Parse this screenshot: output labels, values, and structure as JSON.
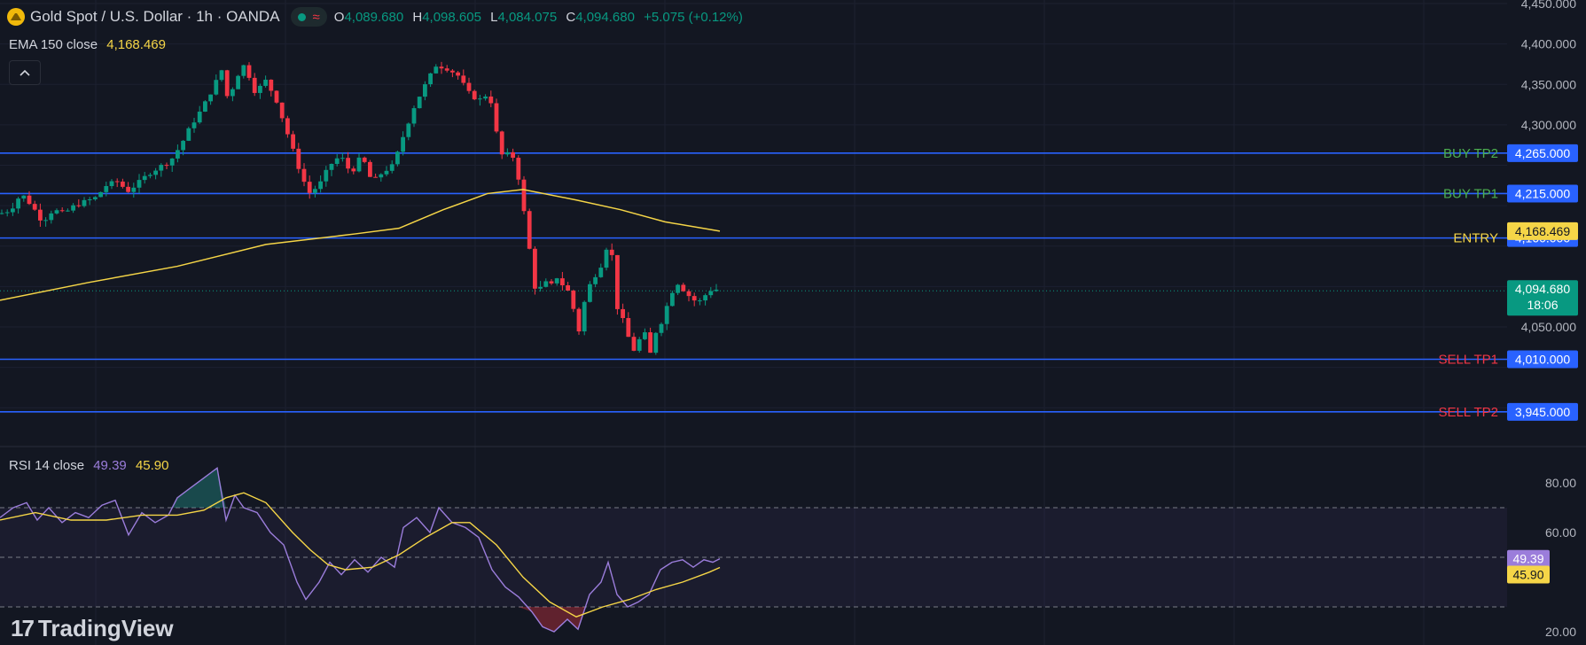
{
  "header": {
    "symbol": "Gold Spot / U.S. Dollar · 1h · OANDA",
    "open_label": "O",
    "open": "4,089.680",
    "high_label": "H",
    "high": "4,098.605",
    "low_label": "L",
    "low": "4,084.075",
    "close_label": "C",
    "close": "4,094.680",
    "change": "+5.075 (+0.12%)",
    "wave_glyph": "≈"
  },
  "ema": {
    "name": "EMA 150 close",
    "value": "4,168.469",
    "color": "#f5d547"
  },
  "rsi_legend": {
    "name": "RSI 14 close",
    "rsi": "49.39",
    "ma": "45.90",
    "rsi_color": "#9b7ddb",
    "ma_color": "#f5d547"
  },
  "branding": {
    "mark": "17",
    "name": "TradingView"
  },
  "colors": {
    "up": "#089981",
    "down": "#f23645",
    "level_line": "#2962ff",
    "label_bg": "#2962ff",
    "ema": "#f5d547",
    "rsi": "#9b7ddb",
    "buy_tp": "#4caf50",
    "sell_tp": "#f23645",
    "entry": "#f5d547",
    "price_bg": "#089981"
  },
  "chart_data": [
    {
      "type": "candlestick",
      "title": "Gold Spot / U.S. Dollar · 1h · OANDA",
      "ylim": [
        3930,
        4455
      ],
      "y_ticks": [
        4450,
        4400,
        4350,
        4300,
        4250,
        4200,
        4150,
        4100,
        4050,
        4000,
        3950
      ],
      "y_tick_labels": [
        "4,450.000",
        "4,400.000",
        "4,350.000",
        "4,300.000",
        "",
        "",
        "",
        "",
        "4,050.000",
        "",
        ""
      ],
      "levels": [
        {
          "name": "BUY TP2",
          "value": 4265,
          "label": "4,265.000",
          "color": "#4caf50"
        },
        {
          "name": "BUY TP1",
          "value": 4215,
          "label": "4,215.000",
          "color": "#4caf50"
        },
        {
          "name": "ENTRY",
          "value": 4160,
          "label": "4,160.000",
          "color": "#f5d547"
        },
        {
          "name": "SELL TP1",
          "value": 4010,
          "label": "4,010.000",
          "color": "#f23645"
        },
        {
          "name": "SELL TP2",
          "value": 3945,
          "label": "3,945.000",
          "color": "#f23645"
        }
      ],
      "ema_label": "4,168.469",
      "last_price": {
        "value": 4094.68,
        "label": "4,094.680",
        "countdown": "18:06"
      },
      "close_path": [
        [
          0,
          4190
        ],
        [
          12,
          4195
        ],
        [
          24,
          4215
        ],
        [
          36,
          4200
        ],
        [
          48,
          4180
        ],
        [
          60,
          4195
        ],
        [
          72,
          4190
        ],
        [
          84,
          4200
        ],
        [
          96,
          4205
        ],
        [
          108,
          4210
        ],
        [
          120,
          4225
        ],
        [
          132,
          4230
        ],
        [
          144,
          4218
        ],
        [
          156,
          4228
        ],
        [
          168,
          4240
        ],
        [
          180,
          4248
        ],
        [
          192,
          4255
        ],
        [
          204,
          4275
        ],
        [
          216,
          4300
        ],
        [
          228,
          4320
        ],
        [
          240,
          4345
        ],
        [
          252,
          4372
        ],
        [
          258,
          4320
        ],
        [
          264,
          4355
        ],
        [
          276,
          4375
        ],
        [
          288,
          4340
        ],
        [
          300,
          4355
        ],
        [
          312,
          4330
        ],
        [
          324,
          4290
        ],
        [
          336,
          4250
        ],
        [
          348,
          4215
        ],
        [
          360,
          4225
        ],
        [
          372,
          4250
        ],
        [
          384,
          4262
        ],
        [
          396,
          4240
        ],
        [
          408,
          4262
        ],
        [
          420,
          4228
        ],
        [
          432,
          4242
        ],
        [
          444,
          4250
        ],
        [
          456,
          4290
        ],
        [
          468,
          4325
        ],
        [
          480,
          4350
        ],
        [
          492,
          4374
        ],
        [
          504,
          4370
        ],
        [
          516,
          4362
        ],
        [
          528,
          4340
        ],
        [
          540,
          4330
        ],
        [
          552,
          4340
        ],
        [
          560,
          4290
        ],
        [
          568,
          4255
        ],
        [
          576,
          4270
        ],
        [
          584,
          4240
        ],
        [
          592,
          4185
        ],
        [
          600,
          4125
        ],
        [
          606,
          4080
        ],
        [
          612,
          4110
        ],
        [
          620,
          4098
        ],
        [
          628,
          4112
        ],
        [
          636,
          4100
        ],
        [
          644,
          4090
        ],
        [
          652,
          4040
        ],
        [
          660,
          4085
        ],
        [
          668,
          4110
        ],
        [
          676,
          4120
        ],
        [
          684,
          4148
        ],
        [
          690,
          4140
        ],
        [
          696,
          4075
        ],
        [
          702,
          4060
        ],
        [
          708,
          4040
        ],
        [
          714,
          4020
        ],
        [
          720,
          4030
        ],
        [
          726,
          4050
        ],
        [
          732,
          4010
        ],
        [
          740,
          4045
        ],
        [
          748,
          4060
        ],
        [
          756,
          4090
        ],
        [
          764,
          4105
        ],
        [
          772,
          4095
        ],
        [
          780,
          4085
        ],
        [
          788,
          4080
        ],
        [
          796,
          4090
        ],
        [
          804,
          4098
        ],
        [
          812,
          4094.7
        ]
      ],
      "ema150": [
        [
          0,
          4083
        ],
        [
          100,
          4105
        ],
        [
          200,
          4125
        ],
        [
          300,
          4152
        ],
        [
          400,
          4165
        ],
        [
          450,
          4172
        ],
        [
          500,
          4195
        ],
        [
          550,
          4215
        ],
        [
          590,
          4220
        ],
        [
          650,
          4207
        ],
        [
          700,
          4195
        ],
        [
          750,
          4180
        ],
        [
          812,
          4168.5
        ]
      ]
    },
    {
      "type": "line",
      "title": "RSI 14 close",
      "ylim": [
        18,
        92
      ],
      "y_ticks": [
        80,
        60,
        40,
        20
      ],
      "y_tick_labels": [
        "80.00",
        "60.00",
        "",
        "20.00"
      ],
      "guide_lines": [
        70,
        50,
        30
      ],
      "series": [
        {
          "name": "RSI 14",
          "color": "#9b7ddb",
          "points": [
            [
              0,
              66
            ],
            [
              15,
              70
            ],
            [
              30,
              72
            ],
            [
              42,
              65
            ],
            [
              55,
              70
            ],
            [
              70,
              64
            ],
            [
              85,
              68
            ],
            [
              100,
              66
            ],
            [
              115,
              71
            ],
            [
              130,
              73
            ],
            [
              145,
              59
            ],
            [
              160,
              68
            ],
            [
              175,
              64
            ],
            [
              190,
              67
            ],
            [
              200,
              74
            ],
            [
              215,
              78
            ],
            [
              230,
              82
            ],
            [
              245,
              86
            ],
            [
              255,
              65
            ],
            [
              265,
              75
            ],
            [
              275,
              70
            ],
            [
              290,
              68
            ],
            [
              305,
              60
            ],
            [
              320,
              55
            ],
            [
              335,
              40
            ],
            [
              345,
              33
            ],
            [
              360,
              40
            ],
            [
              372,
              48
            ],
            [
              385,
              43
            ],
            [
              400,
              49
            ],
            [
              415,
              44
            ],
            [
              430,
              50
            ],
            [
              445,
              46
            ],
            [
              455,
              62
            ],
            [
              470,
              66
            ],
            [
              485,
              60
            ],
            [
              495,
              70
            ],
            [
              510,
              64
            ],
            [
              525,
              62
            ],
            [
              540,
              58
            ],
            [
              555,
              45
            ],
            [
              570,
              38
            ],
            [
              585,
              34
            ],
            [
              600,
              28
            ],
            [
              612,
              22
            ],
            [
              625,
              20
            ],
            [
              640,
              25
            ],
            [
              652,
              21
            ],
            [
              665,
              35
            ],
            [
              678,
              40
            ],
            [
              686,
              48
            ],
            [
              696,
              35
            ],
            [
              708,
              30
            ],
            [
              720,
              32
            ],
            [
              732,
              35
            ],
            [
              745,
              45
            ],
            [
              758,
              48
            ],
            [
              770,
              49
            ],
            [
              782,
              46
            ],
            [
              794,
              49
            ],
            [
              804,
              48
            ],
            [
              812,
              49.4
            ]
          ]
        },
        {
          "name": "RSI MA",
          "color": "#f5d547",
          "points": [
            [
              0,
              65
            ],
            [
              40,
              68
            ],
            [
              80,
              65
            ],
            [
              120,
              65
            ],
            [
              160,
              67
            ],
            [
              200,
              67
            ],
            [
              230,
              69
            ],
            [
              255,
              74
            ],
            [
              275,
              76
            ],
            [
              300,
              72
            ],
            [
              330,
              60
            ],
            [
              350,
              53
            ],
            [
              370,
              47
            ],
            [
              390,
              45
            ],
            [
              420,
              46
            ],
            [
              450,
              51
            ],
            [
              480,
              58
            ],
            [
              510,
              64
            ],
            [
              530,
              64
            ],
            [
              560,
              55
            ],
            [
              590,
              42
            ],
            [
              620,
              32
            ],
            [
              650,
              26
            ],
            [
              680,
              30
            ],
            [
              710,
              33
            ],
            [
              740,
              37
            ],
            [
              770,
              40
            ],
            [
              800,
              44
            ],
            [
              812,
              45.9
            ]
          ]
        }
      ],
      "last_values": [
        {
          "label": "49.39",
          "color": "#9b7ddb"
        },
        {
          "label": "45.90",
          "color": "#f5d547"
        }
      ]
    }
  ]
}
